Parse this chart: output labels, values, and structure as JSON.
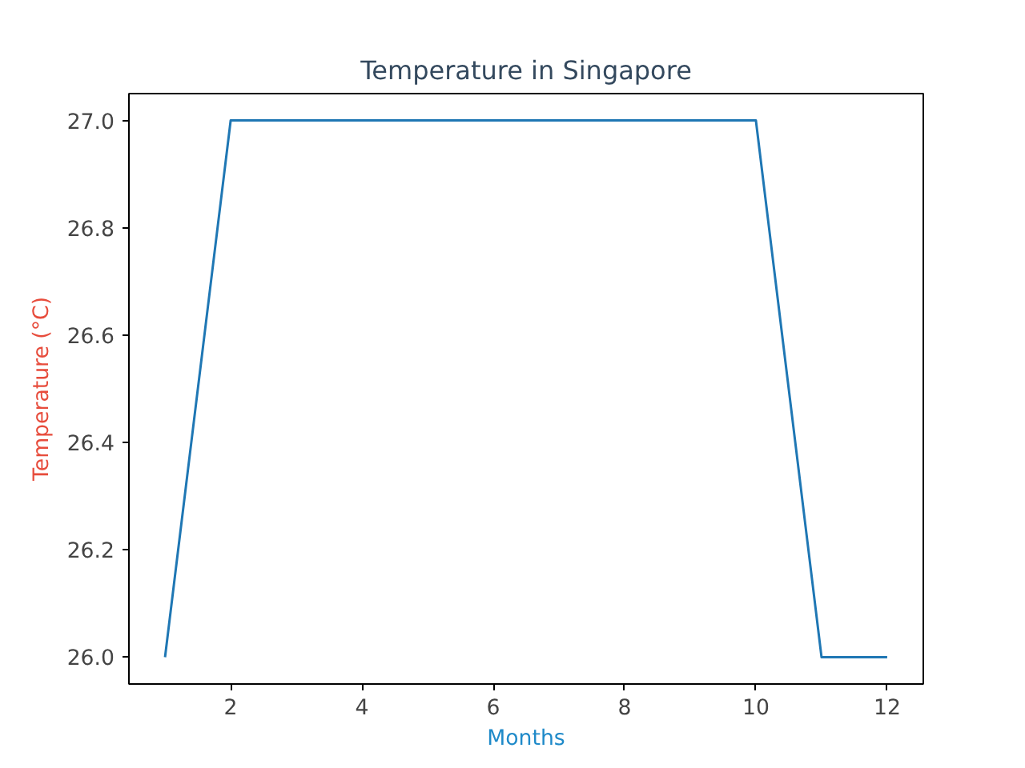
{
  "chart_data": {
    "type": "line",
    "title": "Temperature in Singapore",
    "xlabel": "Months",
    "ylabel": "Temperature (°C)",
    "x": [
      1,
      2,
      3,
      4,
      5,
      6,
      7,
      8,
      9,
      10,
      11,
      12
    ],
    "series": [
      {
        "color": "#1f77b4",
        "values": [
          26.0,
          27.0,
          27.0,
          27.0,
          27.0,
          27.0,
          27.0,
          27.0,
          27.0,
          27.0,
          26.0,
          26.0
        ]
      }
    ],
    "xlim": [
      0.45,
      12.55
    ],
    "ylim": [
      25.95,
      27.05
    ],
    "xticks": [
      2,
      4,
      6,
      8,
      10,
      12
    ],
    "yticks": [
      {
        "value": 26.0,
        "label": "26.0"
      },
      {
        "value": 26.2,
        "label": "26.2"
      },
      {
        "value": 26.4,
        "label": "26.4"
      },
      {
        "value": 26.6,
        "label": "26.6"
      },
      {
        "value": 26.8,
        "label": "26.8"
      },
      {
        "value": 27.0,
        "label": "27.0"
      }
    ],
    "grid": false,
    "marker": "none",
    "line_style": "solid"
  }
}
